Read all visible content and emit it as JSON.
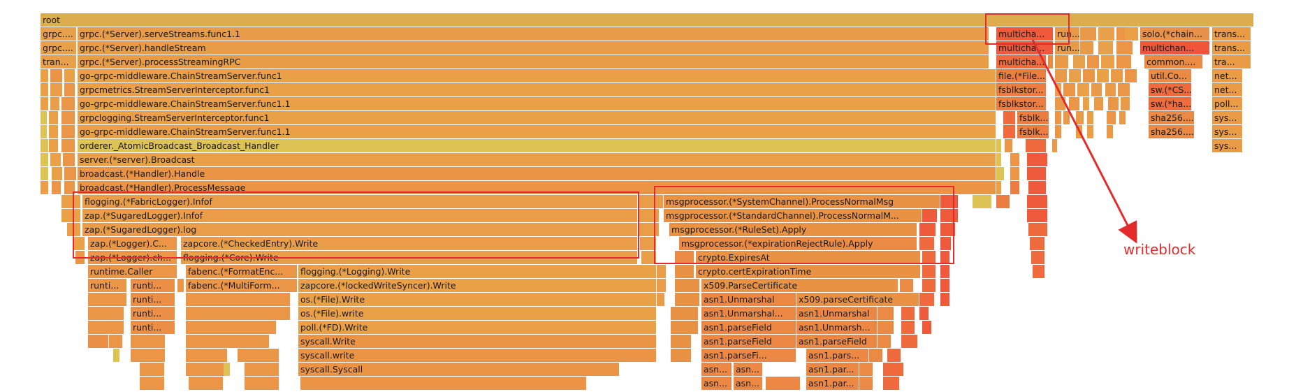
{
  "annotation": {
    "label": "writeblock",
    "color": "#e32b2b"
  },
  "frames": [
    {
      "label": "root",
      "c": "#ddac4c"
    },
    {
      "label": "grpc....",
      "c": "#e8a14b"
    },
    {
      "label": "grpc.(*Server).serveStreams.func1.1",
      "c": "#e79c4a"
    },
    {
      "label": "multicha...",
      "c": "#f05a3c"
    },
    {
      "label": "run...",
      "c": "#e99a48"
    },
    {
      "label": "solo.(*chain...",
      "c": "#e7914a"
    },
    {
      "label": "trans...",
      "c": "#e99b45"
    },
    {
      "label": "grpc....",
      "c": "#e8a04a"
    },
    {
      "label": "grpc.(*Server).handleStream",
      "c": "#e89c48"
    },
    {
      "label": "multicha...",
      "c": "#f05a3c"
    },
    {
      "label": "run...",
      "c": "#e99a48"
    },
    {
      "label": "multichan...",
      "c": "#f0553c"
    },
    {
      "label": "trans...",
      "c": "#e99b45"
    },
    {
      "label": "tran...",
      "c": "#e8a04a"
    },
    {
      "label": "grpc.(*Server).processStreamingRPC",
      "c": "#e99c46"
    },
    {
      "label": "multicha...",
      "c": "#ef6a3d"
    },
    {
      "label": "common....",
      "c": "#ea8a43"
    },
    {
      "label": "tra...",
      "c": "#e99b45"
    },
    {
      "label": "go-grpc-middleware.ChainStreamServer.func1",
      "c": "#e9a046"
    },
    {
      "label": "file.(*File...",
      "c": "#ee7d40"
    },
    {
      "label": "util.Co...",
      "c": "#ea8a43"
    },
    {
      "label": "net...",
      "c": "#e99b45"
    },
    {
      "label": "grpcmetrics.StreamServerInterceptor.func1",
      "c": "#e9a046"
    },
    {
      "label": "fsblkstor...",
      "c": "#ec7d41"
    },
    {
      "label": "sw.(*CS...",
      "c": "#ef6a3d"
    },
    {
      "label": "net...",
      "c": "#e99b45"
    },
    {
      "label": "go-grpc-middleware.ChainStreamServer.func1.1",
      "c": "#e9a046"
    },
    {
      "label": "fsblkstor...",
      "c": "#ec7d41"
    },
    {
      "label": "sw.(*ha...",
      "c": "#ef6a3d"
    },
    {
      "label": "poll...",
      "c": "#e99b45"
    },
    {
      "label": "grpclogging.StreamServerInterceptor.func1",
      "c": "#e9a046"
    },
    {
      "label": "fsblk...",
      "c": "#ec7d41"
    },
    {
      "label": "sha256....",
      "c": "#eb8a45"
    },
    {
      "label": "sys...",
      "c": "#e99b45"
    },
    {
      "label": "go-grpc-middleware.ChainStreamServer.func1.1",
      "c": "#e9a046"
    },
    {
      "label": "fsblk...",
      "c": "#ec7d41"
    },
    {
      "label": "sha256....",
      "c": "#eb8a45"
    },
    {
      "label": "sys...",
      "c": "#e99b45"
    },
    {
      "label": "orderer._AtomicBroadcast_Broadcast_Handler",
      "c": "#ddc254"
    },
    {
      "label": "sys...",
      "c": "#e99b45"
    },
    {
      "label": "server.(*server).Broadcast",
      "c": "#e9a046"
    },
    {
      "label": "broadcast.(*Handler).Handle",
      "c": "#eb9445"
    },
    {
      "label": "broadcast.(*Handler).ProcessMessage",
      "c": "#eb9445"
    },
    {
      "label": "flogging.(*FabricLogger).Infof",
      "c": "#e99d48"
    },
    {
      "label": "msgprocessor.(*SystemChannel).ProcessNormalMsg",
      "c": "#ea9244"
    },
    {
      "label": "zap.(*SugaredLogger).Infof",
      "c": "#e99d48"
    },
    {
      "label": "msgprocessor.(*StandardChannel).ProcessNormalM...",
      "c": "#ea9244"
    },
    {
      "label": "zap.(*SugaredLogger).log",
      "c": "#e99d48"
    },
    {
      "label": "msgprocessor.(*RuleSet).Apply",
      "c": "#ea9244"
    },
    {
      "label": "zap.(*Logger).C...",
      "c": "#eb9547"
    },
    {
      "label": "zapcore.(*CheckedEntry).Write",
      "c": "#e99d48"
    },
    {
      "label": "msgprocessor.(*expirationRejectRule).Apply",
      "c": "#ea8a44"
    },
    {
      "label": "zap.(*Logger).ch...",
      "c": "#eb9547"
    },
    {
      "label": "flogging.(*Core).Write",
      "c": "#e99d48"
    },
    {
      "label": "crypto.ExpiresAt",
      "c": "#ea9244"
    },
    {
      "label": "runtime.Caller",
      "c": "#eb9547"
    },
    {
      "label": "fabenc.(*FormatEnc...",
      "c": "#eb9547"
    },
    {
      "label": "flogging.(*Logging).Write",
      "c": "#e9a046"
    },
    {
      "label": "crypto.certExpirationTime",
      "c": "#ea9244"
    },
    {
      "label": "runti...",
      "c": "#eb9547"
    },
    {
      "label": "runti...",
      "c": "#eb8f46"
    },
    {
      "label": "fabenc.(*MultiForm...",
      "c": "#eb9547"
    },
    {
      "label": "zapcore.(*lockedWriteSyncer).Write",
      "c": "#e9a046"
    },
    {
      "label": "x509.ParseCertificate",
      "c": "#ea9244"
    },
    {
      "label": "runti...",
      "c": "#eb8f46"
    },
    {
      "label": "os.(*File).Write",
      "c": "#e9a046"
    },
    {
      "label": "asn1.Unmarshal",
      "c": "#ed8844"
    },
    {
      "label": "x509.parseCertificate",
      "c": "#ea9244"
    },
    {
      "label": "runti...",
      "c": "#eb8f46"
    },
    {
      "label": "os.(*File).write",
      "c": "#e9a046"
    },
    {
      "label": "asn1.Unmarshal...",
      "c": "#ed8844"
    },
    {
      "label": "asn1.Unmarshal",
      "c": "#ed8844"
    },
    {
      "label": "runti...",
      "c": "#eb8f46"
    },
    {
      "label": "poll.(*FD).Write",
      "c": "#e9a046"
    },
    {
      "label": "asn1.parseField",
      "c": "#ed8844"
    },
    {
      "label": "asn1.Unmarsh...",
      "c": "#ed8844"
    },
    {
      "label": "syscall.Write",
      "c": "#eb9445"
    },
    {
      "label": "asn1.parseField",
      "c": "#ed8844"
    },
    {
      "label": "asn1.parseField",
      "c": "#ed8844"
    },
    {
      "label": "syscall.write",
      "c": "#eb9445"
    },
    {
      "label": "asn1.parseFi...",
      "c": "#ed8844"
    },
    {
      "label": "asn1.pars...",
      "c": "#ed8844"
    },
    {
      "label": "syscall.Syscall",
      "c": "#eb9445"
    },
    {
      "label": "asn...",
      "c": "#ed8844"
    },
    {
      "label": "asn...",
      "c": "#ed8844"
    },
    {
      "label": "asn1.par...",
      "c": "#ed8844"
    },
    {
      "label": "asn...",
      "c": "#ed8844"
    },
    {
      "label": "asn...",
      "c": "#ed8844"
    },
    {
      "label": "asn1.par...",
      "c": "#ed8844"
    }
  ]
}
